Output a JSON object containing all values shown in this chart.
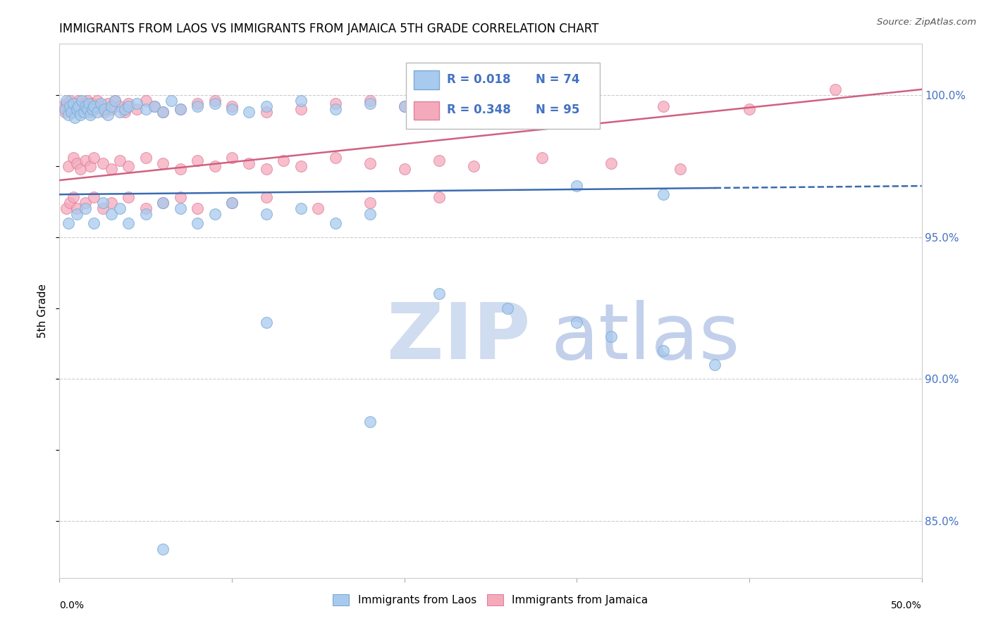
{
  "title": "IMMIGRANTS FROM LAOS VS IMMIGRANTS FROM JAMAICA 5TH GRADE CORRELATION CHART",
  "source": "Source: ZipAtlas.com",
  "ylabel": "5th Grade",
  "yticks": [
    85.0,
    90.0,
    95.0,
    100.0
  ],
  "xlim": [
    0.0,
    50.0
  ],
  "ylim": [
    83.0,
    101.8
  ],
  "legend_laos": "Immigrants from Laos",
  "legend_jamaica": "Immigrants from Jamaica",
  "R_laos": 0.018,
  "N_laos": 74,
  "R_jamaica": 0.348,
  "N_jamaica": 95,
  "color_laos": "#A8CAEE",
  "color_laos_edge": "#7AAAD4",
  "color_jamaica": "#F5AABB",
  "color_jamaica_edge": "#E080A0",
  "line_color_laos": "#3B6BB0",
  "line_color_jamaica": "#D06080",
  "watermark_zip_color": "#D0DCF0",
  "watermark_atlas_color": "#B8C8E8",
  "background_color": "#FFFFFF",
  "laos_x": [
    0.3,
    0.4,
    0.5,
    0.6,
    0.7,
    0.8,
    0.9,
    1.0,
    1.1,
    1.2,
    1.3,
    1.4,
    1.5,
    1.6,
    1.7,
    1.8,
    1.9,
    2.0,
    2.2,
    2.4,
    2.6,
    2.8,
    3.0,
    3.2,
    3.5,
    3.8,
    4.0,
    4.5,
    5.0,
    5.5,
    6.0,
    6.5,
    7.0,
    8.0,
    9.0,
    10.0,
    11.0,
    12.0,
    14.0,
    16.0,
    18.0,
    20.0,
    22.0,
    25.0,
    28.0,
    30.0,
    35.0,
    0.5,
    1.0,
    1.5,
    2.0,
    2.5,
    3.0,
    3.5,
    4.0,
    5.0,
    6.0,
    7.0,
    8.0,
    9.0,
    10.0,
    12.0,
    14.0,
    16.0,
    18.0,
    22.0,
    26.0,
    30.0,
    32.0,
    35.0,
    38.0,
    18.0,
    12.0,
    6.0
  ],
  "laos_y": [
    99.5,
    99.8,
    99.3,
    99.6,
    99.4,
    99.7,
    99.2,
    99.5,
    99.6,
    99.3,
    99.8,
    99.4,
    99.6,
    99.5,
    99.7,
    99.3,
    99.5,
    99.6,
    99.4,
    99.7,
    99.5,
    99.3,
    99.6,
    99.8,
    99.4,
    99.5,
    99.6,
    99.7,
    99.5,
    99.6,
    99.4,
    99.8,
    99.5,
    99.6,
    99.7,
    99.5,
    99.4,
    99.6,
    99.8,
    99.5,
    99.7,
    99.6,
    99.4,
    99.5,
    99.7,
    96.8,
    96.5,
    95.5,
    95.8,
    96.0,
    95.5,
    96.2,
    95.8,
    96.0,
    95.5,
    95.8,
    96.2,
    96.0,
    95.5,
    95.8,
    96.2,
    95.8,
    96.0,
    95.5,
    95.8,
    93.0,
    92.5,
    92.0,
    91.5,
    91.0,
    90.5,
    88.5,
    92.0,
    84.0
  ],
  "jamaica_x": [
    0.2,
    0.3,
    0.4,
    0.5,
    0.6,
    0.7,
    0.8,
    0.9,
    1.0,
    1.1,
    1.2,
    1.3,
    1.4,
    1.5,
    1.6,
    1.7,
    1.8,
    1.9,
    2.0,
    2.2,
    2.4,
    2.6,
    2.8,
    3.0,
    3.2,
    3.5,
    3.8,
    4.0,
    4.5,
    5.0,
    5.5,
    6.0,
    7.0,
    8.0,
    9.0,
    10.0,
    12.0,
    14.0,
    16.0,
    18.0,
    20.0,
    22.0,
    24.0,
    26.0,
    30.0,
    35.0,
    40.0,
    45.0,
    0.5,
    0.8,
    1.0,
    1.2,
    1.5,
    1.8,
    2.0,
    2.5,
    3.0,
    3.5,
    4.0,
    5.0,
    6.0,
    7.0,
    8.0,
    9.0,
    10.0,
    11.0,
    12.0,
    13.0,
    14.0,
    16.0,
    18.0,
    20.0,
    22.0,
    24.0,
    28.0,
    32.0,
    36.0,
    0.4,
    0.6,
    0.8,
    1.0,
    1.5,
    2.0,
    2.5,
    3.0,
    4.0,
    5.0,
    6.0,
    7.0,
    8.0,
    10.0,
    12.0,
    15.0,
    18.0,
    22.0
  ],
  "jamaica_y": [
    99.6,
    99.4,
    99.7,
    99.5,
    99.8,
    99.6,
    99.4,
    99.7,
    99.5,
    99.8,
    99.6,
    99.4,
    99.7,
    99.5,
    99.8,
    99.6,
    99.4,
    99.7,
    99.5,
    99.8,
    99.6,
    99.4,
    99.7,
    99.5,
    99.8,
    99.6,
    99.4,
    99.7,
    99.5,
    99.8,
    99.6,
    99.4,
    99.5,
    99.7,
    99.8,
    99.6,
    99.4,
    99.5,
    99.7,
    99.8,
    99.6,
    99.4,
    99.5,
    99.7,
    99.8,
    99.6,
    99.5,
    100.2,
    97.5,
    97.8,
    97.6,
    97.4,
    97.7,
    97.5,
    97.8,
    97.6,
    97.4,
    97.7,
    97.5,
    97.8,
    97.6,
    97.4,
    97.7,
    97.5,
    97.8,
    97.6,
    97.4,
    97.7,
    97.5,
    97.8,
    97.6,
    97.4,
    97.7,
    97.5,
    97.8,
    97.6,
    97.4,
    96.0,
    96.2,
    96.4,
    96.0,
    96.2,
    96.4,
    96.0,
    96.2,
    96.4,
    96.0,
    96.2,
    96.4,
    96.0,
    96.2,
    96.4,
    96.0,
    96.2,
    96.4
  ]
}
